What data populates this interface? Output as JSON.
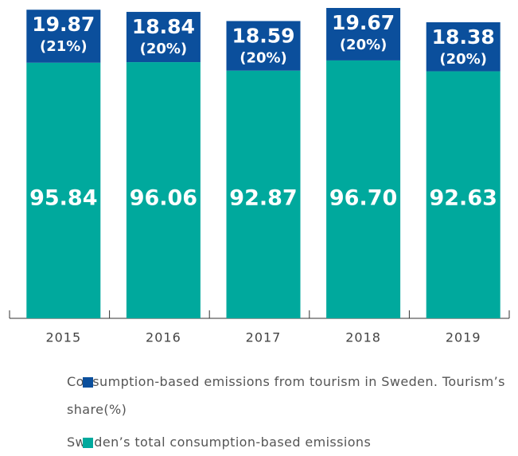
{
  "chart_data": {
    "type": "stacked_bar",
    "categories": [
      "2015",
      "2016",
      "2017",
      "2018",
      "2019"
    ],
    "series": [
      {
        "name": "Sweden’s total consumption-based emissions",
        "color": "#00a99d",
        "values": [
          95.84,
          96.06,
          92.87,
          96.7,
          92.63
        ],
        "value_labels": [
          "95.84",
          "96.06",
          "92.87",
          "96.70",
          "92.63"
        ]
      },
      {
        "name": "Consumption-based emissions from tourism in Sweden. Tourism’s share(%)",
        "color": "#0b4f9c",
        "values": [
          19.87,
          18.84,
          18.59,
          19.67,
          18.38
        ],
        "value_labels": [
          "19.87",
          "18.84",
          "18.59",
          "19.67",
          "18.38"
        ],
        "shares": [
          21,
          20,
          20,
          20,
          20
        ],
        "share_labels": [
          "(21%)",
          "(20%)",
          "(20%)",
          "(20%)",
          "(20%)"
        ]
      }
    ]
  }
}
